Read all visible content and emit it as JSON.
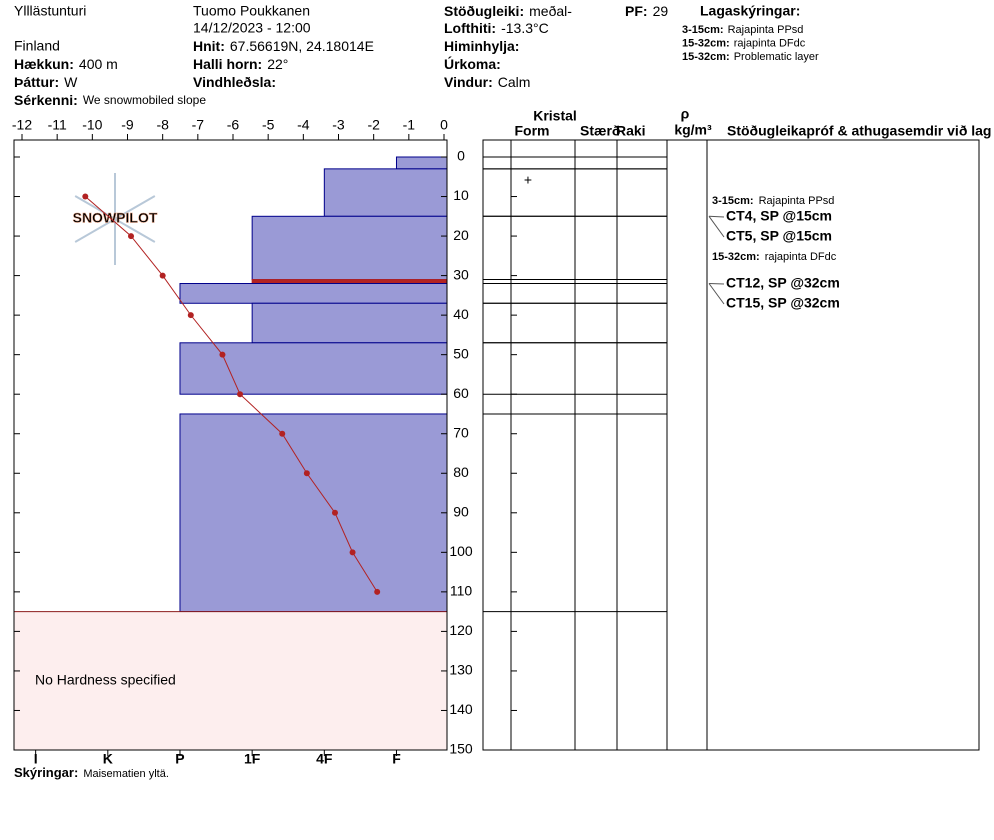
{
  "header": {
    "site": "Ylllästunturi",
    "country": "Finland",
    "observer": "Tuomo Poukkanen",
    "datetime": "14/12/2023 - 12:00",
    "elevation": {
      "label": "Hækkun:",
      "value": "400 m"
    },
    "aspect": {
      "label": "Þáttur:",
      "value": "W"
    },
    "features": {
      "label": "Sérkenni:",
      "value": "We snowmobiled slope"
    },
    "coords": {
      "label": "Hnit:",
      "value": "67.56619N, 24.18014E"
    },
    "slope": {
      "label": "Halli horn:",
      "value": "22°"
    },
    "wind_loading": {
      "label": "Vindhleðsla:"
    },
    "stability": {
      "label": "Stöðugleiki:",
      "value": "meðal-"
    },
    "air_temp": {
      "label": "Lofthiti:",
      "value": "-13.3°C"
    },
    "sky": {
      "label": "Himinhylja:"
    },
    "precip": {
      "label": "Úrkoma:"
    },
    "wind": {
      "label": "Vindur:",
      "value": "Calm"
    },
    "pf": {
      "label": "PF:",
      "value": "29"
    },
    "layer_notes": {
      "title": "Lagaskýringar:",
      "items": [
        {
          "range": "3-15cm:",
          "text": "Rajapinta PPsd"
        },
        {
          "range": "15-32cm:",
          "text": "rajapinta DFdc"
        },
        {
          "range": "15-32cm:",
          "text": "Problematic layer"
        }
      ]
    },
    "comments": {
      "label": "Skýringar:",
      "value": "Maisematien yltä."
    }
  },
  "chart_data": {
    "type": "snow-profile",
    "logo": "SNOWPILOT",
    "ylim": [
      0,
      150
    ],
    "yticks": [
      0,
      10,
      20,
      30,
      40,
      50,
      60,
      70,
      80,
      90,
      100,
      110,
      120,
      130,
      140,
      150
    ],
    "temperature": {
      "xlim": [
        -12,
        0
      ],
      "xticks": [
        -12,
        -11,
        -10,
        -9,
        -8,
        -7,
        -6,
        -5,
        -4,
        -3,
        -2,
        -1,
        0
      ],
      "depths": [
        10,
        20,
        30,
        40,
        50,
        60,
        70,
        80,
        90,
        100,
        110
      ],
      "values": [
        -10.2,
        -8.9,
        -8.0,
        -7.2,
        -6.3,
        -5.8,
        -4.6,
        -3.9,
        -3.1,
        -2.6,
        -1.9
      ],
      "color": "#b22222"
    },
    "hardness": {
      "xlim": [
        0.3,
        6.3
      ],
      "xticks": [
        {
          "value": 6,
          "label": "I"
        },
        {
          "value": 5,
          "label": "K"
        },
        {
          "value": 4,
          "label": "P"
        },
        {
          "value": 3,
          "label": "1F"
        },
        {
          "value": 2,
          "label": "4F"
        },
        {
          "value": 1,
          "label": "F"
        }
      ],
      "color": "#9a9ad6",
      "edge_color": "#00008b"
    },
    "layers": [
      {
        "top": 0,
        "bottom": 3,
        "hardness": 1
      },
      {
        "top": 3,
        "bottom": 15,
        "hardness": 2,
        "form": "+"
      },
      {
        "top": 15,
        "bottom": 31,
        "hardness": 3
      },
      {
        "top": 31,
        "bottom": 32,
        "hardness": 3,
        "color": "#b22222"
      },
      {
        "top": 32,
        "bottom": 37,
        "hardness": 4
      },
      {
        "top": 37,
        "bottom": 47,
        "hardness": 3
      },
      {
        "top": 47,
        "bottom": 60,
        "hardness": 4
      },
      {
        "top": 65,
        "bottom": 115,
        "hardness": 4
      }
    ],
    "no_hardness_note": "No Hardness specified",
    "columns": {
      "crystal": "Kristal",
      "form": "Form",
      "size": "Stærð",
      "moisture": "Raki",
      "density_symbol": "ρ",
      "density_unit": "kg/m³",
      "tests": "Stöðugleikapróf & athugasemdir við lag"
    },
    "notes": [
      {
        "range": "3-15cm:",
        "text": "Rajapinta PPsd"
      },
      {
        "test": "CT4, SP @15cm",
        "depth": 15
      },
      {
        "test": "CT5, SP @15cm",
        "depth": 15
      },
      {
        "range": "15-32cm:",
        "text": "rajapinta DFdc"
      },
      {
        "test": "CT12, SP @32cm",
        "depth": 32
      },
      {
        "test": "CT15, SP @32cm",
        "depth": 32
      }
    ]
  }
}
